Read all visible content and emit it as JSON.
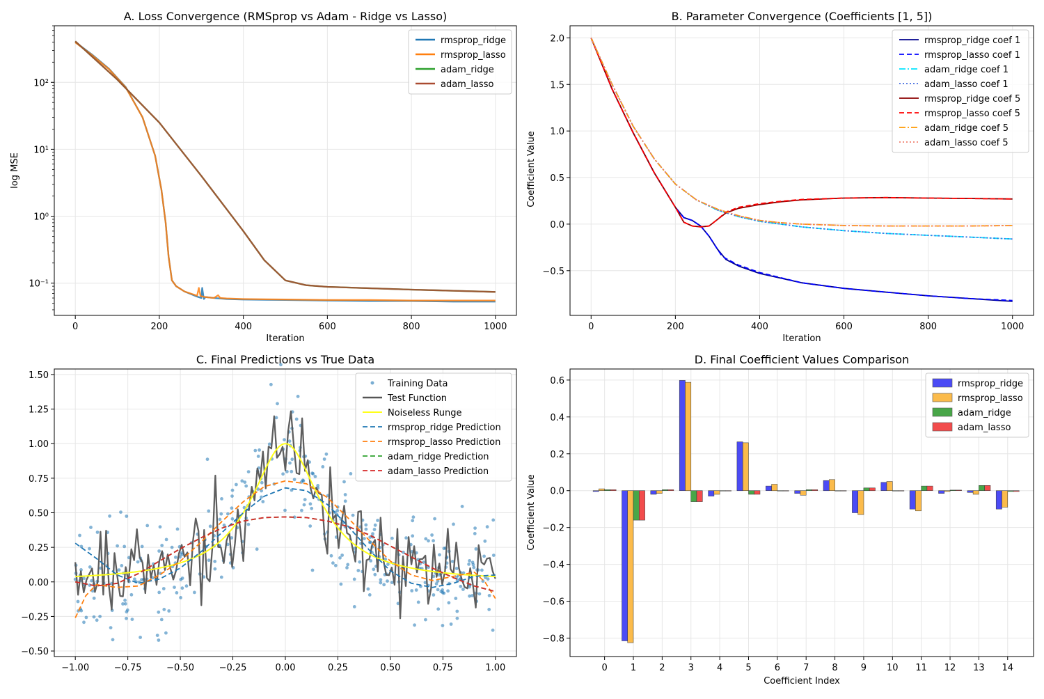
{
  "chart_data": [
    {
      "type": "line",
      "title": "A. Loss Convergence (RMSprop vs Adam - Ridge vs Lasso)",
      "xlabel": "Iteration",
      "ylabel": "log MSE",
      "yscale": "log",
      "xlim": [
        -50,
        1050
      ],
      "ylim": [
        0.033,
        700
      ],
      "xticks": [
        0,
        200,
        400,
        600,
        800,
        1000
      ],
      "xtick_labels": [
        "0",
        "200",
        "400",
        "600",
        "800",
        "1000"
      ],
      "yticks": [
        0.1,
        1,
        10,
        100
      ],
      "ytick_labels": [
        "10⁻¹",
        "10⁰",
        "10¹",
        "10²"
      ],
      "grid": true,
      "legend_position": "top-right",
      "series": [
        {
          "name": "rmsprop_ridge",
          "color": "#1f77b4",
          "dash": "",
          "x": [
            0,
            40,
            80,
            120,
            160,
            190,
            205,
            215,
            222,
            230,
            240,
            260,
            290,
            300,
            302,
            306,
            310,
            330,
            360,
            400,
            500,
            600,
            700,
            800,
            900,
            1000
          ],
          "y": [
            400,
            260,
            160,
            85,
            30,
            8,
            2.5,
            0.8,
            0.25,
            0.11,
            0.09,
            0.075,
            0.063,
            0.06,
            0.085,
            0.058,
            0.062,
            0.06,
            0.058,
            0.057,
            0.056,
            0.055,
            0.054,
            0.054,
            0.053,
            0.053
          ]
        },
        {
          "name": "rmsprop_lasso",
          "color": "#ff7f0e",
          "dash": "",
          "x": [
            0,
            40,
            80,
            120,
            160,
            190,
            205,
            215,
            222,
            230,
            240,
            260,
            290,
            294,
            298,
            310,
            330,
            340,
            345,
            360,
            400,
            500,
            600,
            700,
            800,
            900,
            1000
          ],
          "y": [
            395,
            255,
            158,
            84,
            30,
            8,
            2.5,
            0.8,
            0.25,
            0.11,
            0.09,
            0.075,
            0.065,
            0.085,
            0.064,
            0.062,
            0.06,
            0.066,
            0.06,
            0.059,
            0.058,
            0.057,
            0.056,
            0.056,
            0.055,
            0.055,
            0.055
          ]
        },
        {
          "name": "adam_ridge",
          "color": "#2ca02c",
          "dash": "",
          "x": [
            0,
            100,
            200,
            300,
            400,
            450,
            500,
            550,
            600,
            700,
            800,
            900,
            1000
          ],
          "y": [
            410,
            110,
            25,
            4,
            0.6,
            0.22,
            0.11,
            0.093,
            0.088,
            0.084,
            0.08,
            0.077,
            0.074
          ]
        },
        {
          "name": "adam_lasso",
          "color": "#a94a30",
          "dash": "",
          "x": [
            0,
            100,
            200,
            300,
            400,
            450,
            500,
            550,
            600,
            700,
            800,
            900,
            1000
          ],
          "y": [
            410,
            110,
            25,
            4,
            0.6,
            0.22,
            0.11,
            0.093,
            0.088,
            0.084,
            0.08,
            0.077,
            0.074
          ]
        }
      ]
    },
    {
      "type": "line",
      "title": "B. Parameter Convergence (Coefficients [1, 5])",
      "xlabel": "Iteration",
      "ylabel": "Coefficient Value",
      "xlim": [
        -50,
        1050
      ],
      "ylim": [
        -0.98,
        2.13
      ],
      "xticks": [
        0,
        200,
        400,
        600,
        800,
        1000
      ],
      "xtick_labels": [
        "0",
        "200",
        "400",
        "600",
        "800",
        "1000"
      ],
      "yticks": [
        -0.5,
        0.0,
        0.5,
        1.0,
        1.5,
        2.0
      ],
      "ytick_labels": [
        "−0.5",
        "0.0",
        "0.5",
        "1.0",
        "1.5",
        "2.0"
      ],
      "grid": true,
      "legend_position": "top-right",
      "series": [
        {
          "name": "rmsprop_ridge coef 1",
          "color": "#00008b",
          "dash": "",
          "x": [
            0,
            50,
            100,
            150,
            200,
            220,
            240,
            260,
            280,
            300,
            320,
            350,
            400,
            500,
            600,
            700,
            800,
            900,
            1000
          ],
          "y": [
            2.0,
            1.45,
            0.98,
            0.55,
            0.18,
            0.07,
            0.04,
            -0.02,
            -0.13,
            -0.27,
            -0.38,
            -0.45,
            -0.53,
            -0.63,
            -0.69,
            -0.73,
            -0.77,
            -0.8,
            -0.83
          ]
        },
        {
          "name": "rmsprop_lasso coef 1",
          "color": "#0000ff",
          "dash": "7,4",
          "x": [
            0,
            50,
            100,
            150,
            200,
            220,
            240,
            260,
            280,
            300,
            310,
            320,
            350,
            400,
            500,
            600,
            700,
            800,
            900,
            1000
          ],
          "y": [
            2.0,
            1.45,
            0.98,
            0.55,
            0.18,
            0.07,
            0.04,
            -0.02,
            -0.13,
            -0.27,
            -0.34,
            -0.37,
            -0.44,
            -0.52,
            -0.63,
            -0.69,
            -0.73,
            -0.77,
            -0.8,
            -0.82
          ]
        },
        {
          "name": "adam_ridge coef 1",
          "color": "#00e5ff",
          "dash": "9,3,2,3",
          "x": [
            0,
            50,
            100,
            150,
            200,
            250,
            300,
            350,
            400,
            500,
            600,
            700,
            800,
            900,
            1000
          ],
          "y": [
            2.0,
            1.5,
            1.05,
            0.7,
            0.43,
            0.26,
            0.15,
            0.08,
            0.03,
            -0.03,
            -0.07,
            -0.1,
            -0.12,
            -0.14,
            -0.16
          ]
        },
        {
          "name": "adam_lasso coef 1",
          "color": "#4169e1",
          "dash": "2,3",
          "x": [
            0,
            50,
            100,
            150,
            200,
            250,
            300,
            350,
            400,
            500,
            600,
            700,
            800,
            900,
            1000
          ],
          "y": [
            2.0,
            1.5,
            1.05,
            0.7,
            0.43,
            0.26,
            0.15,
            0.08,
            0.03,
            -0.03,
            -0.07,
            -0.1,
            -0.12,
            -0.14,
            -0.16
          ]
        },
        {
          "name": "rmsprop_ridge coef 5",
          "color": "#8b0000",
          "dash": "",
          "x": [
            0,
            50,
            100,
            150,
            200,
            220,
            240,
            260,
            280,
            300,
            320,
            350,
            400,
            450,
            500,
            600,
            700,
            800,
            900,
            1000
          ],
          "y": [
            2.0,
            1.45,
            0.98,
            0.55,
            0.18,
            0.02,
            -0.02,
            -0.03,
            -0.02,
            0.05,
            0.12,
            0.17,
            0.21,
            0.24,
            0.26,
            0.28,
            0.285,
            0.28,
            0.275,
            0.27
          ]
        },
        {
          "name": "rmsprop_lasso coef 5",
          "color": "#ff0000",
          "dash": "7,4",
          "x": [
            0,
            50,
            100,
            150,
            200,
            220,
            240,
            260,
            280,
            300,
            320,
            350,
            400,
            450,
            500,
            600,
            700,
            800,
            900,
            1000
          ],
          "y": [
            2.0,
            1.45,
            0.98,
            0.55,
            0.18,
            0.02,
            -0.02,
            -0.03,
            -0.02,
            0.05,
            0.13,
            0.18,
            0.22,
            0.245,
            0.265,
            0.28,
            0.285,
            0.28,
            0.275,
            0.27
          ]
        },
        {
          "name": "adam_ridge coef 5",
          "color": "#ff9900",
          "dash": "9,3,2,3",
          "x": [
            0,
            50,
            100,
            150,
            200,
            250,
            300,
            350,
            400,
            450,
            500,
            600,
            700,
            800,
            900,
            1000
          ],
          "y": [
            2.0,
            1.5,
            1.05,
            0.7,
            0.43,
            0.26,
            0.16,
            0.09,
            0.04,
            0.015,
            0.0,
            -0.015,
            -0.02,
            -0.02,
            -0.02,
            -0.015
          ]
        },
        {
          "name": "adam_lasso coef 5",
          "color": "#f08070",
          "dash": "2,3",
          "x": [
            0,
            50,
            100,
            150,
            200,
            250,
            300,
            350,
            400,
            450,
            500,
            600,
            700,
            800,
            900,
            1000
          ],
          "y": [
            2.0,
            1.5,
            1.05,
            0.7,
            0.43,
            0.26,
            0.16,
            0.09,
            0.04,
            0.015,
            0.0,
            -0.015,
            -0.02,
            -0.02,
            -0.02,
            -0.015
          ]
        }
      ]
    },
    {
      "type": "scatter",
      "title": "C. Final Predictions vs True Data",
      "xlabel": "",
      "ylabel": "",
      "xlim": [
        -1.1,
        1.1
      ],
      "ylim": [
        -0.54,
        1.54
      ],
      "xticks": [
        -1.0,
        -0.75,
        -0.5,
        -0.25,
        0.0,
        0.25,
        0.5,
        0.75,
        1.0
      ],
      "xtick_labels": [
        "−1.00",
        "−0.75",
        "−0.50",
        "−0.25",
        "0.00",
        "0.25",
        "0.50",
        "0.75",
        "1.00"
      ],
      "yticks": [
        -0.5,
        -0.25,
        0.0,
        0.25,
        0.5,
        0.75,
        1.0,
        1.25,
        1.5
      ],
      "ytick_labels": [
        "−0.50",
        "−0.25",
        "0.00",
        "0.25",
        "0.50",
        "0.75",
        "1.00",
        "1.25",
        "1.50"
      ],
      "grid": true,
      "legend_position": "top-right",
      "scatter_series": {
        "name": "Training Data",
        "color": "#1f77b4"
      },
      "test_function": {
        "name": "Test Function",
        "color": "#555555"
      },
      "runge": {
        "name": "Noiseless Runge",
        "color": "#ffff1a"
      },
      "prediction_series": [
        {
          "name": "rmsprop_ridge Prediction",
          "color": "#1f77b4",
          "dash": "7,4",
          "x": [
            -1.0,
            -0.9,
            -0.8,
            -0.7,
            -0.6,
            -0.5,
            -0.4,
            -0.3,
            -0.2,
            -0.1,
            0.0,
            0.1,
            0.2,
            0.3,
            0.4,
            0.5,
            0.6,
            0.7,
            0.8,
            0.9,
            1.0
          ],
          "y": [
            0.28,
            0.17,
            0.05,
            -0.01,
            0.02,
            0.1,
            0.22,
            0.36,
            0.5,
            0.62,
            0.68,
            0.66,
            0.56,
            0.4,
            0.23,
            0.08,
            -0.01,
            -0.04,
            -0.01,
            0.04,
            0.05
          ]
        },
        {
          "name": "rmsprop_lasso Prediction",
          "color": "#ff7f0e",
          "dash": "7,4",
          "x": [
            -1.0,
            -0.95,
            -0.9,
            -0.8,
            -0.7,
            -0.6,
            -0.5,
            -0.4,
            -0.3,
            -0.2,
            -0.1,
            0.0,
            0.1,
            0.2,
            0.3,
            0.4,
            0.5,
            0.6,
            0.7,
            0.8,
            0.9,
            0.95,
            1.0
          ],
          "y": [
            -0.26,
            -0.1,
            -0.02,
            -0.04,
            -0.03,
            0.05,
            0.15,
            0.29,
            0.44,
            0.58,
            0.69,
            0.73,
            0.71,
            0.61,
            0.46,
            0.3,
            0.15,
            0.05,
            0.01,
            0.04,
            0.07,
            0.0,
            -0.12
          ]
        },
        {
          "name": "adam_ridge Prediction",
          "color": "#2ca02c",
          "dash": "7,4",
          "x": [
            -1.0,
            -0.9,
            -0.8,
            -0.7,
            -0.6,
            -0.5,
            -0.4,
            -0.3,
            -0.2,
            -0.1,
            0.0,
            0.1,
            0.2,
            0.3,
            0.4,
            0.5,
            0.6,
            0.7,
            0.8,
            0.9,
            1.0
          ],
          "y": [
            0.0,
            -0.03,
            -0.01,
            0.06,
            0.15,
            0.24,
            0.32,
            0.39,
            0.44,
            0.465,
            0.47,
            0.465,
            0.44,
            0.4,
            0.34,
            0.26,
            0.18,
            0.1,
            0.03,
            -0.03,
            -0.07
          ]
        },
        {
          "name": "adam_lasso Prediction",
          "color": "#d62728",
          "dash": "7,4",
          "x": [
            -1.0,
            -0.9,
            -0.8,
            -0.7,
            -0.6,
            -0.5,
            -0.4,
            -0.3,
            -0.2,
            -0.1,
            0.0,
            0.1,
            0.2,
            0.3,
            0.4,
            0.5,
            0.6,
            0.7,
            0.8,
            0.9,
            1.0
          ],
          "y": [
            0.0,
            -0.03,
            -0.01,
            0.06,
            0.15,
            0.24,
            0.32,
            0.39,
            0.44,
            0.465,
            0.47,
            0.465,
            0.44,
            0.4,
            0.34,
            0.26,
            0.18,
            0.1,
            0.03,
            -0.03,
            -0.07
          ]
        }
      ]
    },
    {
      "type": "bar",
      "title": "D. Final Coefficient Values Comparison",
      "xlabel": "Coefficient Index",
      "ylabel": "Coefficient Value",
      "categories": [
        "0",
        "1",
        "2",
        "3",
        "4",
        "5",
        "6",
        "7",
        "8",
        "9",
        "10",
        "11",
        "12",
        "13",
        "14"
      ],
      "ylim": [
        -0.9,
        0.66
      ],
      "yticks": [
        -0.8,
        -0.6,
        -0.4,
        -0.2,
        0.0,
        0.2,
        0.4,
        0.6
      ],
      "ytick_labels": [
        "−0.8",
        "−0.6",
        "−0.4",
        "−0.2",
        "0.0",
        "0.2",
        "0.4",
        "0.6"
      ],
      "grid": true,
      "legend_position": "top-right",
      "series": [
        {
          "name": "rmsprop_ridge",
          "color": "#4b4bf5",
          "values": [
            -0.005,
            -0.815,
            -0.02,
            0.598,
            -0.03,
            0.265,
            0.025,
            -0.015,
            0.055,
            -0.12,
            0.045,
            -0.1,
            -0.015,
            -0.01,
            -0.1
          ]
        },
        {
          "name": "rmsprop_lasso",
          "color": "#fbbb4b",
          "values": [
            0.01,
            -0.825,
            -0.015,
            0.588,
            -0.02,
            0.26,
            0.035,
            -0.025,
            0.06,
            -0.13,
            0.05,
            -0.11,
            -0.005,
            -0.02,
            -0.09
          ]
        },
        {
          "name": "adam_ridge",
          "color": "#48a648",
          "values": [
            0.005,
            -0.16,
            0.005,
            -0.06,
            0.0,
            -0.02,
            0.0,
            0.005,
            0.0,
            0.015,
            0.0,
            0.025,
            0.003,
            0.028,
            -0.005
          ]
        },
        {
          "name": "adam_lasso",
          "color": "#f24c4c",
          "values": [
            0.005,
            -0.16,
            0.005,
            -0.06,
            0.0,
            -0.02,
            0.0,
            0.005,
            0.0,
            0.015,
            0.0,
            0.025,
            0.003,
            0.028,
            -0.005
          ]
        }
      ]
    }
  ]
}
